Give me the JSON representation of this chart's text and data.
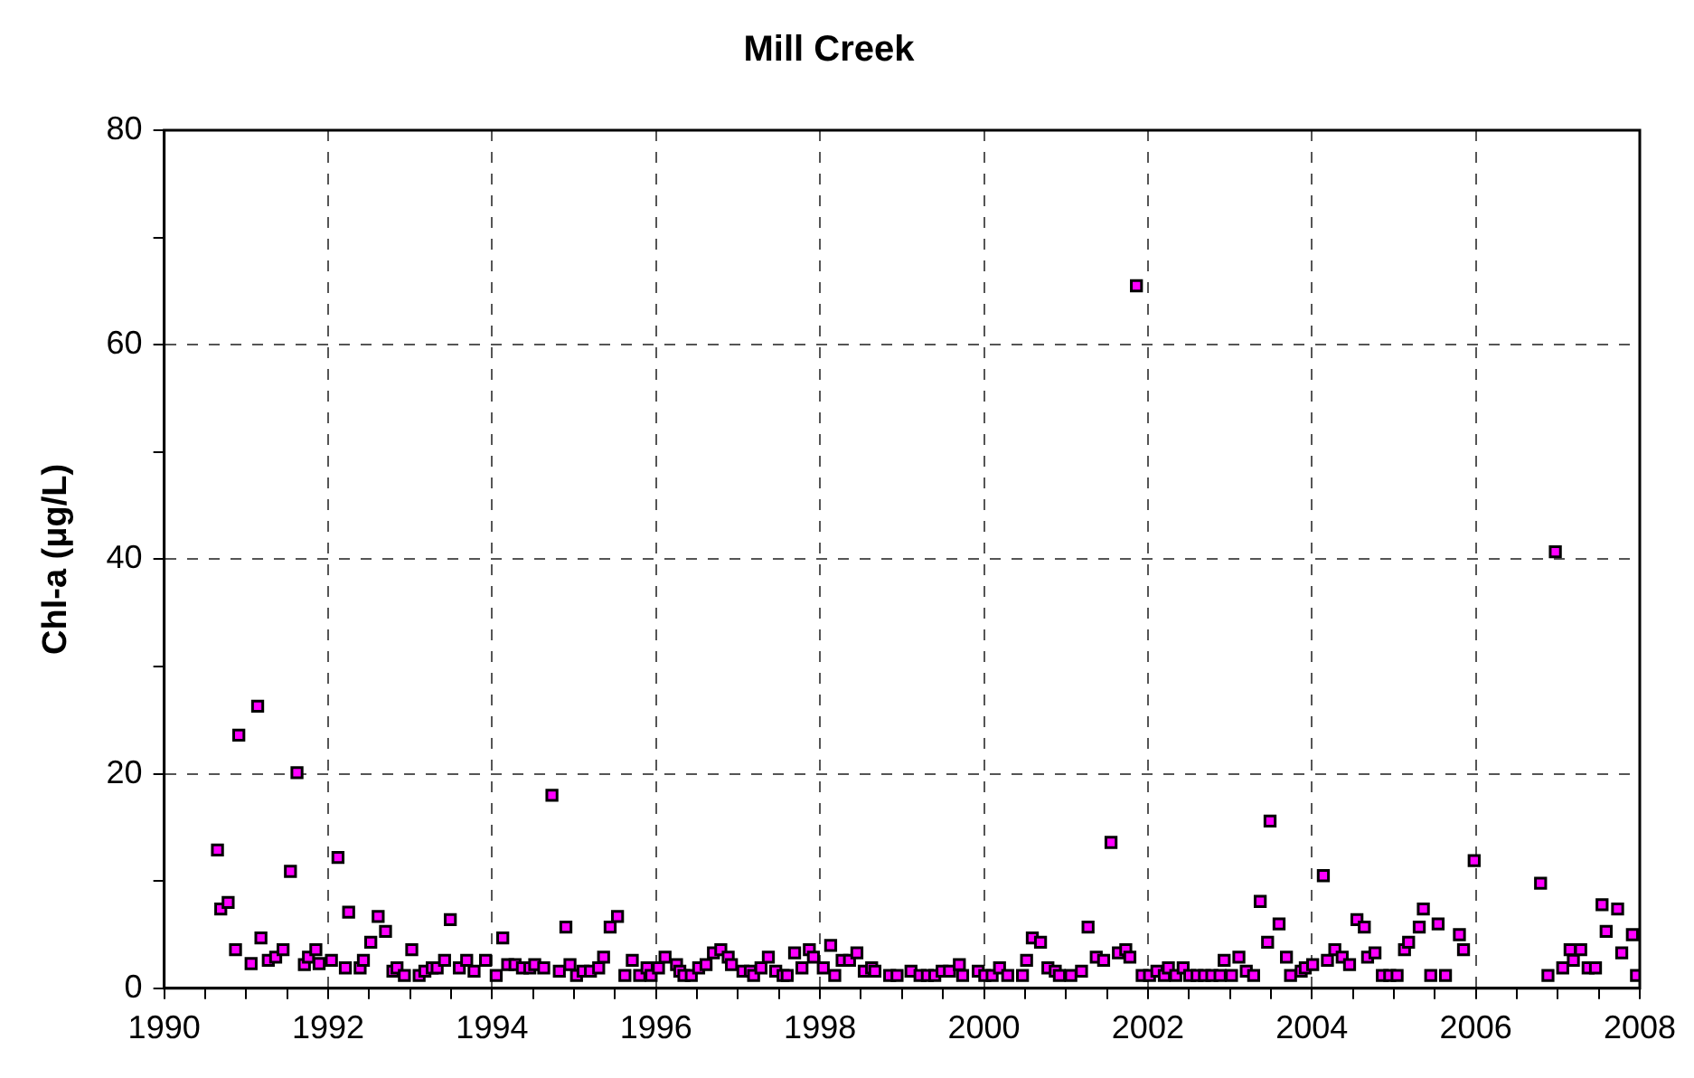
{
  "chart_data": {
    "type": "scatter",
    "title": "Mill Creek",
    "ylabel": "Chl-a (μg/L)",
    "x": [
      1990.65,
      1990.69,
      1990.78,
      1990.87,
      1990.91,
      1991.06,
      1991.14,
      1991.18,
      1991.27,
      1991.36,
      1991.45,
      1991.54,
      1991.62,
      1991.71,
      1991.76,
      1991.85,
      1991.89,
      1992.04,
      1992.12,
      1992.21,
      1992.25,
      1992.39,
      1992.43,
      1992.52,
      1992.61,
      1992.7,
      1992.79,
      1992.84,
      1992.93,
      1993.02,
      1993.11,
      1993.18,
      1993.27,
      1993.33,
      1993.42,
      1993.49,
      1993.6,
      1993.69,
      1993.78,
      1993.92,
      1994.05,
      1994.13,
      1994.19,
      1994.28,
      1994.37,
      1994.46,
      1994.52,
      1994.63,
      1994.73,
      1994.82,
      1994.9,
      1994.95,
      1995.03,
      1995.11,
      1995.2,
      1995.3,
      1995.36,
      1995.44,
      1995.53,
      1995.62,
      1995.71,
      1995.8,
      1995.89,
      1995.94,
      1996.03,
      1996.11,
      1996.25,
      1996.29,
      1996.34,
      1996.43,
      1996.52,
      1996.61,
      1996.7,
      1996.79,
      1996.88,
      1996.92,
      1997.06,
      1997.15,
      1997.19,
      1997.28,
      1997.37,
      1997.46,
      1997.55,
      1997.6,
      1997.69,
      1997.78,
      1997.87,
      1997.92,
      1998.04,
      1998.13,
      1998.18,
      1998.27,
      1998.36,
      1998.45,
      1998.54,
      1998.63,
      1998.67,
      1998.85,
      1998.94,
      1999.11,
      1999.22,
      1999.31,
      1999.4,
      1999.49,
      1999.58,
      1999.7,
      1999.74,
      1999.93,
      2000.01,
      2000.1,
      2000.19,
      2000.29,
      2000.47,
      2000.52,
      2000.59,
      2000.69,
      2000.78,
      2000.87,
      2000.92,
      2001.06,
      2001.19,
      2001.27,
      2001.37,
      2001.46,
      2001.55,
      2001.64,
      2001.73,
      2001.78,
      2001.86,
      2001.93,
      2002.02,
      2002.11,
      2002.2,
      2002.25,
      2002.34,
      2002.43,
      2002.51,
      2002.6,
      2002.69,
      2002.78,
      2002.88,
      2002.93,
      2003.02,
      2003.11,
      2003.2,
      2003.29,
      2003.37,
      2003.46,
      2003.49,
      2003.6,
      2003.69,
      2003.74,
      2003.87,
      2003.92,
      2004.01,
      2004.14,
      2004.19,
      2004.28,
      2004.37,
      2004.46,
      2004.55,
      2004.64,
      2004.68,
      2004.77,
      2004.86,
      2004.95,
      2005.04,
      2005.13,
      2005.18,
      2005.31,
      2005.36,
      2005.45,
      2005.54,
      2005.63,
      2005.8,
      2005.85,
      2005.98,
      2006.79,
      2006.88,
      2006.97,
      2007.06,
      2007.15,
      2007.19,
      2007.28,
      2007.37,
      2007.46,
      2007.54,
      2007.59,
      2007.73,
      2007.78,
      2007.91,
      2007.96
    ],
    "series": [
      {
        "color": "#ff00ff",
        "values": [
          12.9,
          7.4,
          8.0,
          3.6,
          23.6,
          2.3,
          26.3,
          4.7,
          2.6,
          2.9,
          3.6,
          10.9,
          20.1,
          2.2,
          2.9,
          3.6,
          2.3,
          2.6,
          12.2,
          1.9,
          7.1,
          1.9,
          2.6,
          4.3,
          6.7,
          5.3,
          1.6,
          1.9,
          1.2,
          3.6,
          1.2,
          1.6,
          1.9,
          1.9,
          2.6,
          6.4,
          1.9,
          2.6,
          1.6,
          2.6,
          1.2,
          4.7,
          2.2,
          2.2,
          1.9,
          1.9,
          2.2,
          1.9,
          18.0,
          1.6,
          5.7,
          2.2,
          1.2,
          1.6,
          1.6,
          1.9,
          2.9,
          5.7,
          6.7,
          1.2,
          2.6,
          1.2,
          1.9,
          1.2,
          1.9,
          2.9,
          2.2,
          1.6,
          1.2,
          1.2,
          1.9,
          2.2,
          3.3,
          3.6,
          2.9,
          2.2,
          1.6,
          1.6,
          1.2,
          1.9,
          2.9,
          1.6,
          1.2,
          1.2,
          3.3,
          1.9,
          3.6,
          2.9,
          1.9,
          4.0,
          1.2,
          2.6,
          2.6,
          3.3,
          1.6,
          1.9,
          1.6,
          1.2,
          1.2,
          1.6,
          1.2,
          1.2,
          1.2,
          1.6,
          1.6,
          2.2,
          1.2,
          1.6,
          1.2,
          1.2,
          1.9,
          1.2,
          1.2,
          2.6,
          4.7,
          4.3,
          1.9,
          1.6,
          1.2,
          1.2,
          1.6,
          5.7,
          2.9,
          2.6,
          13.6,
          3.3,
          3.6,
          2.9,
          65.5,
          1.2,
          1.2,
          1.6,
          1.2,
          1.9,
          1.2,
          1.9,
          1.2,
          1.2,
          1.2,
          1.2,
          1.2,
          2.6,
          1.2,
          2.9,
          1.6,
          1.2,
          8.1,
          4.3,
          15.6,
          6.0,
          2.9,
          1.2,
          1.6,
          1.9,
          2.2,
          10.5,
          2.6,
          3.6,
          2.9,
          2.2,
          6.4,
          5.7,
          2.9,
          3.3,
          1.2,
          1.2,
          1.2,
          3.6,
          4.3,
          5.7,
          7.4,
          1.2,
          6.0,
          1.2,
          5.0,
          3.6,
          11.9,
          9.8,
          1.2,
          40.7,
          1.9,
          3.6,
          2.6,
          3.6,
          1.9,
          1.9,
          7.8,
          5.3,
          7.4,
          3.3,
          5.0,
          1.2
        ]
      }
    ],
    "marker": "square",
    "grid": true,
    "xlim": [
      1990,
      2008
    ],
    "xticks": [
      1990,
      {
        "value": 1990.5,
        "label": null
      },
      {
        "value": 1991,
        "label": null
      },
      {
        "value": 1991.5,
        "label": null
      },
      1992,
      {
        "value": 1992.5,
        "label": null
      },
      {
        "value": 1993,
        "label": null
      },
      {
        "value": 1993.5,
        "label": null
      },
      1994,
      {
        "value": 1994.5,
        "label": null
      },
      {
        "value": 1995,
        "label": null
      },
      {
        "value": 1995.5,
        "label": null
      },
      1996,
      {
        "value": 1996.5,
        "label": null
      },
      {
        "value": 1997,
        "label": null
      },
      {
        "value": 1997.5,
        "label": null
      },
      1998,
      {
        "value": 1998.5,
        "label": null
      },
      {
        "value": 1999,
        "label": null
      },
      {
        "value": 1999.5,
        "label": null
      },
      2000,
      {
        "value": 2000.5,
        "label": null
      },
      {
        "value": 2001,
        "label": null
      },
      {
        "value": 2001.5,
        "label": null
      },
      2002,
      {
        "value": 2002.5,
        "label": null
      },
      {
        "value": 2003,
        "label": null
      },
      {
        "value": 2003.5,
        "label": null
      },
      2004,
      {
        "value": 2004.5,
        "label": null
      },
      {
        "value": 2005,
        "label": null
      },
      {
        "value": 2005.5,
        "label": null
      },
      2006,
      {
        "value": 2006.5,
        "label": null
      },
      {
        "value": 2007,
        "label": null
      },
      {
        "value": 2007.5,
        "label": null
      },
      2008
    ],
    "ylim": [
      0,
      80
    ],
    "yticks": [
      0,
      {
        "value": 10,
        "label": null
      },
      20,
      {
        "value": 30,
        "label": null
      },
      40,
      {
        "value": 50,
        "label": null
      },
      60,
      {
        "value": 70,
        "label": null
      },
      80
    ]
  }
}
